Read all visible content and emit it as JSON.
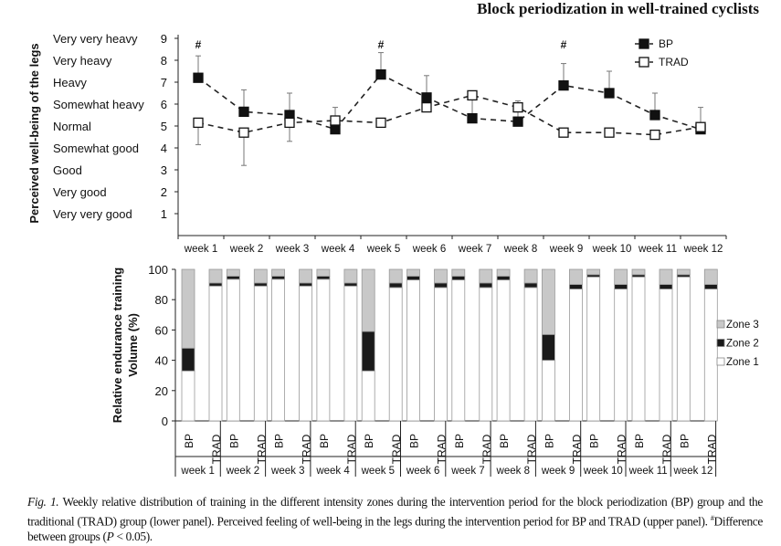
{
  "header": {
    "title": "Block periodization in well-trained cyclists"
  },
  "caption": {
    "fig_label": "Fig. 1.",
    "text1": " Weekly relative distribution of training in the different intensity zones during the intervention period for the block periodization (BP) group and the traditional (TRAD) group (lower panel). Perceived feeling of well-being in the legs during the intervention period for BP and TRAD (upper panel). ",
    "sup": "#",
    "text2": "Difference between groups (",
    "p": "P",
    "text3": " < 0.05)."
  },
  "chart_data": [
    {
      "type": "line",
      "ylabel": "Perceived well-being of the legs",
      "ylim": [
        0,
        9
      ],
      "yticks": [
        1,
        2,
        3,
        4,
        5,
        6,
        7,
        8,
        9
      ],
      "ytick_text": [
        "Very very good",
        "Very good",
        "Good",
        "Somewhat good",
        "Normal",
        "Somewhat heavy",
        "Heavy",
        "Very heavy",
        "Very very heavy"
      ],
      "categories": [
        "week 1",
        "week 2",
        "week 3",
        "week 4",
        "week 5",
        "week 6",
        "week 7",
        "week 8",
        "week 9",
        "week 10",
        "week 11",
        "week 12"
      ],
      "significance_marker": "#",
      "significant_weeks": [
        0,
        4,
        8
      ],
      "legend_position": "top-right",
      "series": [
        {
          "name": "BP",
          "marker": "filled-square",
          "color": "#111111",
          "values": [
            7.2,
            5.65,
            5.5,
            4.85,
            7.35,
            6.3,
            5.35,
            5.2,
            6.85,
            6.5,
            5.5,
            4.85
          ],
          "error_end": [
            8.2,
            6.65,
            6.5,
            null,
            8.35,
            7.3,
            6.4,
            6.15,
            7.85,
            7.5,
            6.5,
            5.85
          ]
        },
        {
          "name": "TRAD",
          "marker": "open-square",
          "color": "#111111",
          "values": [
            5.15,
            4.7,
            5.15,
            5.25,
            5.15,
            5.85,
            6.4,
            5.85,
            4.7,
            4.7,
            4.6,
            4.95
          ],
          "error_end": [
            4.15,
            3.2,
            4.3,
            5.85,
            null,
            null,
            null,
            null,
            null,
            null,
            null,
            null
          ]
        }
      ]
    },
    {
      "type": "bar",
      "stacked": true,
      "ylabel": "Relative endurance training Volume (%)",
      "ylim": [
        0,
        100
      ],
      "yticks": [
        0,
        20,
        40,
        60,
        80,
        100
      ],
      "groups": [
        "week 1",
        "week 2",
        "week 3",
        "week 4",
        "week 5",
        "week 6",
        "week 7",
        "week 8",
        "week 9",
        "week 10",
        "week 11",
        "week 12"
      ],
      "bar_labels": [
        "BP",
        "TRAD"
      ],
      "legend_position": "right",
      "zones": [
        {
          "name": "Zone 3",
          "color": "#c8c8c8"
        },
        {
          "name": "Zone 2",
          "color": "#1a1a1a"
        },
        {
          "name": "Zone 1",
          "color": "#ffffff"
        }
      ],
      "values": {
        "BP": [
          [
            33,
            15,
            52
          ],
          [
            93.5,
            2,
            4.5
          ],
          [
            93.5,
            2,
            4.5
          ],
          [
            93.5,
            2,
            4.5
          ],
          [
            33,
            26,
            41
          ],
          [
            93,
            2.5,
            4.5
          ],
          [
            93,
            2.5,
            4.5
          ],
          [
            93,
            2.5,
            4.5
          ],
          [
            40,
            17,
            43
          ],
          [
            95,
            1.5,
            3.5
          ],
          [
            95,
            1.5,
            3.5
          ],
          [
            95,
            1.5,
            3.5
          ]
        ],
        "TRAD": [
          [
            89,
            2,
            9
          ],
          [
            89,
            2,
            9
          ],
          [
            89,
            2,
            9
          ],
          [
            89,
            2,
            9
          ],
          [
            88,
            3,
            9
          ],
          [
            88,
            3,
            9
          ],
          [
            88,
            3,
            9
          ],
          [
            88,
            3,
            9
          ],
          [
            87,
            3,
            10
          ],
          [
            87,
            3,
            10
          ],
          [
            87,
            3,
            10
          ],
          [
            87,
            3,
            10
          ]
        ]
      },
      "value_order": [
        "Zone 1",
        "Zone 2",
        "Zone 3"
      ]
    }
  ]
}
